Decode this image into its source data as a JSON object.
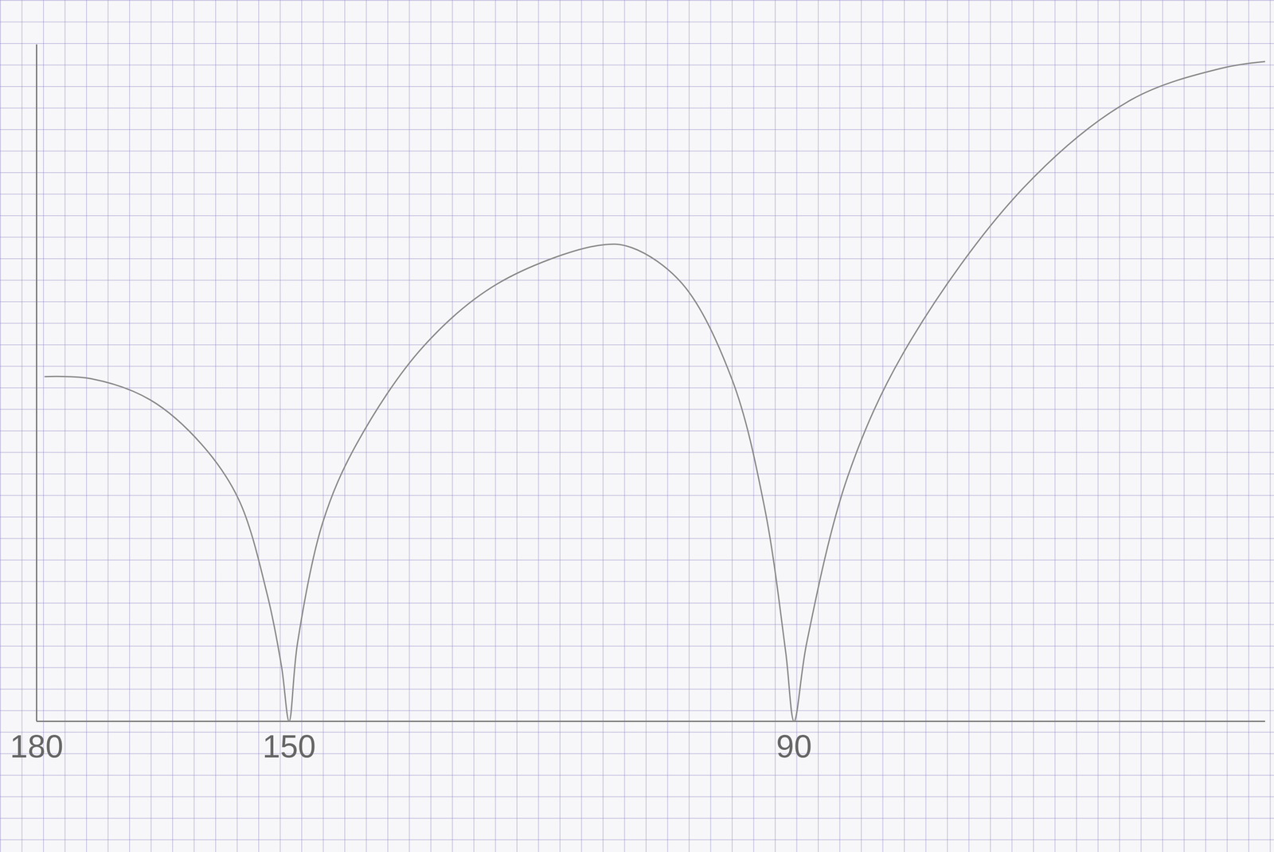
{
  "chart_data": {
    "type": "line",
    "x": [
      179,
      173.5,
      166.5,
      160.4,
      156,
      152.6,
      150.9,
      150,
      149,
      146,
      142,
      134.1,
      125.2,
      113.3,
      109.3,
      103.3,
      97.4,
      93.5,
      91,
      90,
      88.5,
      83.6,
      76.6,
      62.8,
      49.9,
      39,
      34
    ],
    "values": [
      16.3,
      16.2,
      15.2,
      13.1,
      10.5,
      6.0,
      2.6,
      0,
      3.7,
      9.4,
      13.1,
      17.7,
      20.7,
      22.5,
      22.4,
      20.7,
      16.2,
      10.1,
      3.3,
      0,
      3.7,
      11.6,
      17.7,
      25.2,
      29.4,
      30.9,
      31.2
    ],
    "color": "#8a8a8a",
    "xlim": [
      180,
      34
    ],
    "xticks": [
      180,
      150,
      90
    ],
    "ylim": [
      0,
      32
    ],
    "yticks": [],
    "tick_labels": "x"
  }
}
